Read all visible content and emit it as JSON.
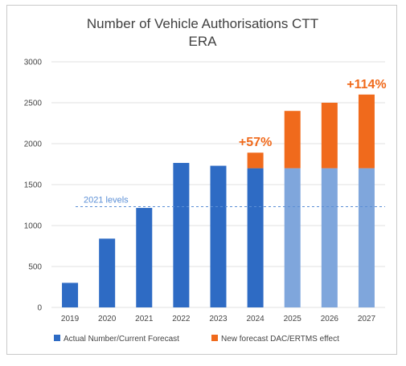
{
  "chart_data": {
    "type": "bar",
    "stacked": true,
    "title": "Number of  Vehicle Authorisations CTT",
    "subtitle": "ERA",
    "categories": [
      "2019",
      "2020",
      "2021",
      "2022",
      "2023",
      "2024",
      "2025",
      "2026",
      "2027"
    ],
    "series": [
      {
        "name": "Actual Number/Current Forecast",
        "color": "#2e6bc4",
        "values": [
          300,
          840,
          1215,
          1765,
          1730,
          1700,
          1700,
          1700,
          1700
        ],
        "light_color": "#7fa6dc",
        "light_from_index": 6
      },
      {
        "name": "New forecast DAC/ERTMS effect",
        "color": "#f06a1c",
        "values": [
          0,
          0,
          0,
          0,
          0,
          190,
          700,
          800,
          900
        ]
      }
    ],
    "ylim": [
      0,
      3000
    ],
    "yticks": [
      0,
      500,
      1000,
      1500,
      2000,
      2500,
      3000
    ],
    "grid": true,
    "legend_position": "bottom",
    "reference_line": {
      "label": "2021 levels",
      "value": 1230,
      "color": "#5b8fd6"
    },
    "annotations": [
      {
        "text": "+57%",
        "category": "2024",
        "color": "#f06a1c"
      },
      {
        "text": "+114%",
        "category": "2027",
        "color": "#f06a1c"
      }
    ]
  }
}
